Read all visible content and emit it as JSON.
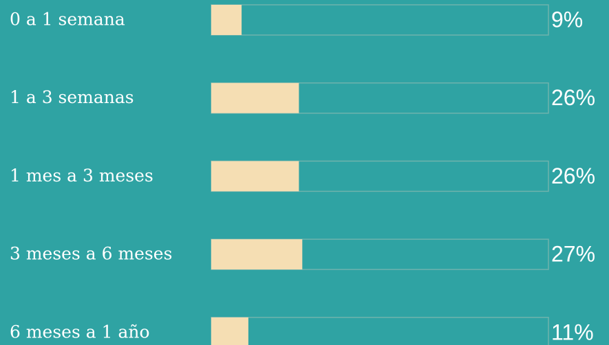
{
  "chart_data": {
    "type": "bar",
    "orientation": "horizontal",
    "categories": [
      "0 a 1 semana",
      "1 a 3 semanas",
      "1 mes a 3 meses",
      "3 meses a 6 meses",
      "6 meses a 1 año"
    ],
    "values": [
      9,
      26,
      26,
      27,
      11
    ],
    "value_labels": [
      "9%",
      "26%",
      "26%",
      "27%",
      "11%"
    ],
    "color": "#f5deb3",
    "xlim": [
      0,
      100
    ]
  }
}
